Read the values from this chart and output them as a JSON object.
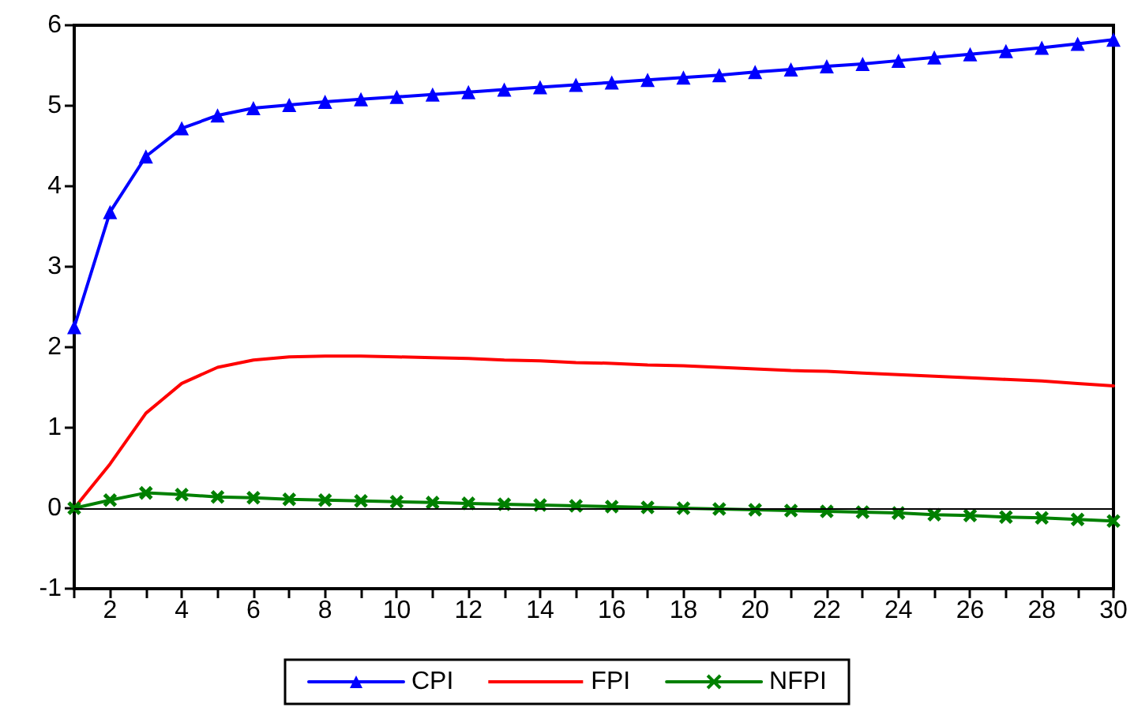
{
  "chart_data": {
    "type": "line",
    "x": [
      1,
      2,
      3,
      4,
      5,
      6,
      7,
      8,
      9,
      10,
      11,
      12,
      13,
      14,
      15,
      16,
      17,
      18,
      19,
      20,
      21,
      22,
      23,
      24,
      25,
      26,
      27,
      28,
      29,
      30
    ],
    "xlim": [
      1,
      30
    ],
    "xticks": [
      {
        "value": 1,
        "label": null
      },
      2,
      {
        "value": 3,
        "label": null
      },
      4,
      {
        "value": 5,
        "label": null
      },
      6,
      {
        "value": 7,
        "label": null
      },
      8,
      {
        "value": 9,
        "label": null
      },
      10,
      {
        "value": 11,
        "label": null
      },
      12,
      {
        "value": 13,
        "label": null
      },
      14,
      {
        "value": 15,
        "label": null
      },
      16,
      {
        "value": 17,
        "label": null
      },
      18,
      {
        "value": 19,
        "label": null
      },
      20,
      {
        "value": 21,
        "label": null
      },
      22,
      {
        "value": 23,
        "label": null
      },
      24,
      {
        "value": 25,
        "label": null
      },
      26,
      {
        "value": 27,
        "label": null
      },
      28,
      {
        "value": 29,
        "label": null
      },
      30
    ],
    "series": [
      {
        "name": "CPI",
        "color": "#0000ff",
        "marker": "triangle",
        "values": [
          2.25,
          3.68,
          4.37,
          4.72,
          4.88,
          4.97,
          5.01,
          5.05,
          5.08,
          5.11,
          5.14,
          5.17,
          5.2,
          5.23,
          5.26,
          5.29,
          5.32,
          5.35,
          5.38,
          5.42,
          5.45,
          5.49,
          5.52,
          5.56,
          5.6,
          5.64,
          5.68,
          5.72,
          5.77,
          5.82
        ]
      },
      {
        "name": "FPI",
        "color": "#ff0000",
        "marker": "none",
        "values": [
          0,
          0.55,
          1.18,
          1.55,
          1.75,
          1.84,
          1.88,
          1.89,
          1.89,
          1.88,
          1.87,
          1.86,
          1.84,
          1.83,
          1.81,
          1.8,
          1.78,
          1.77,
          1.75,
          1.73,
          1.71,
          1.7,
          1.68,
          1.66,
          1.64,
          1.62,
          1.6,
          1.58,
          1.55,
          1.52
        ]
      },
      {
        "name": "NFPI",
        "color": "#008000",
        "marker": "cross",
        "values": [
          0,
          0.1,
          0.19,
          0.17,
          0.14,
          0.13,
          0.11,
          0.1,
          0.09,
          0.08,
          0.07,
          0.06,
          0.05,
          0.04,
          0.03,
          0.02,
          0.01,
          0,
          -0.01,
          -0.02,
          -0.03,
          -0.04,
          -0.05,
          -0.06,
          -0.08,
          -0.09,
          -0.11,
          -0.12,
          -0.14,
          -0.16
        ]
      }
    ],
    "ylim": [
      -1,
      6
    ],
    "yticks": [
      -1,
      0,
      1,
      2,
      3,
      4,
      5,
      6
    ],
    "ref_lines": [
      {
        "axis": "y",
        "value": 0,
        "color": "#000000"
      }
    ],
    "grid": false,
    "legend": "bottom",
    "line_style": "solid"
  }
}
